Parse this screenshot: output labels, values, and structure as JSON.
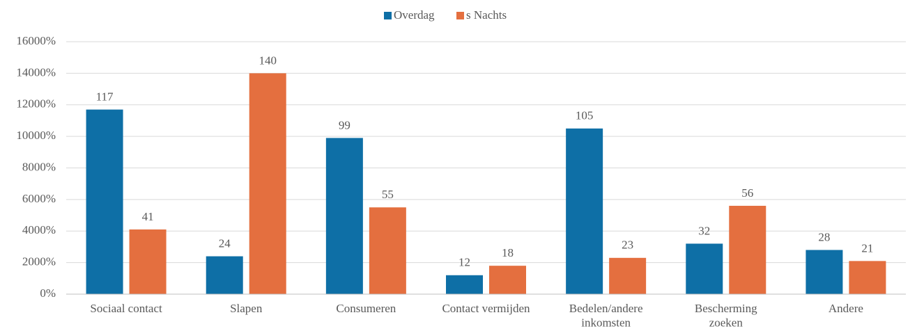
{
  "chart_data": {
    "type": "bar",
    "categories": [
      "Sociaal contact",
      "Slapen",
      "Consumeren",
      "Contact vermijden",
      "Bedelen/andere\ninkomsten",
      "Bescherming\nzoeken",
      "Andere"
    ],
    "series": [
      {
        "name": "Overdag",
        "color": "#0e6fa6",
        "values": [
          117,
          24,
          99,
          12,
          105,
          32,
          28
        ]
      },
      {
        "name": "s Nachts",
        "color": "#e46f3f",
        "values": [
          41,
          140,
          55,
          18,
          23,
          56,
          21
        ]
      }
    ],
    "ylim": [
      0,
      160
    ],
    "yticks": [
      {
        "value": 0,
        "label": "0%"
      },
      {
        "value": 20,
        "label": "2000%"
      },
      {
        "value": 40,
        "label": "4000%"
      },
      {
        "value": 60,
        "label": "6000%"
      },
      {
        "value": 80,
        "label": "8000%"
      },
      {
        "value": 100,
        "label": "10000%"
      },
      {
        "value": 120,
        "label": "12000%"
      },
      {
        "value": 140,
        "label": "14000%"
      },
      {
        "value": 160,
        "label": "16000%"
      }
    ],
    "grid": true,
    "legend": "top"
  }
}
